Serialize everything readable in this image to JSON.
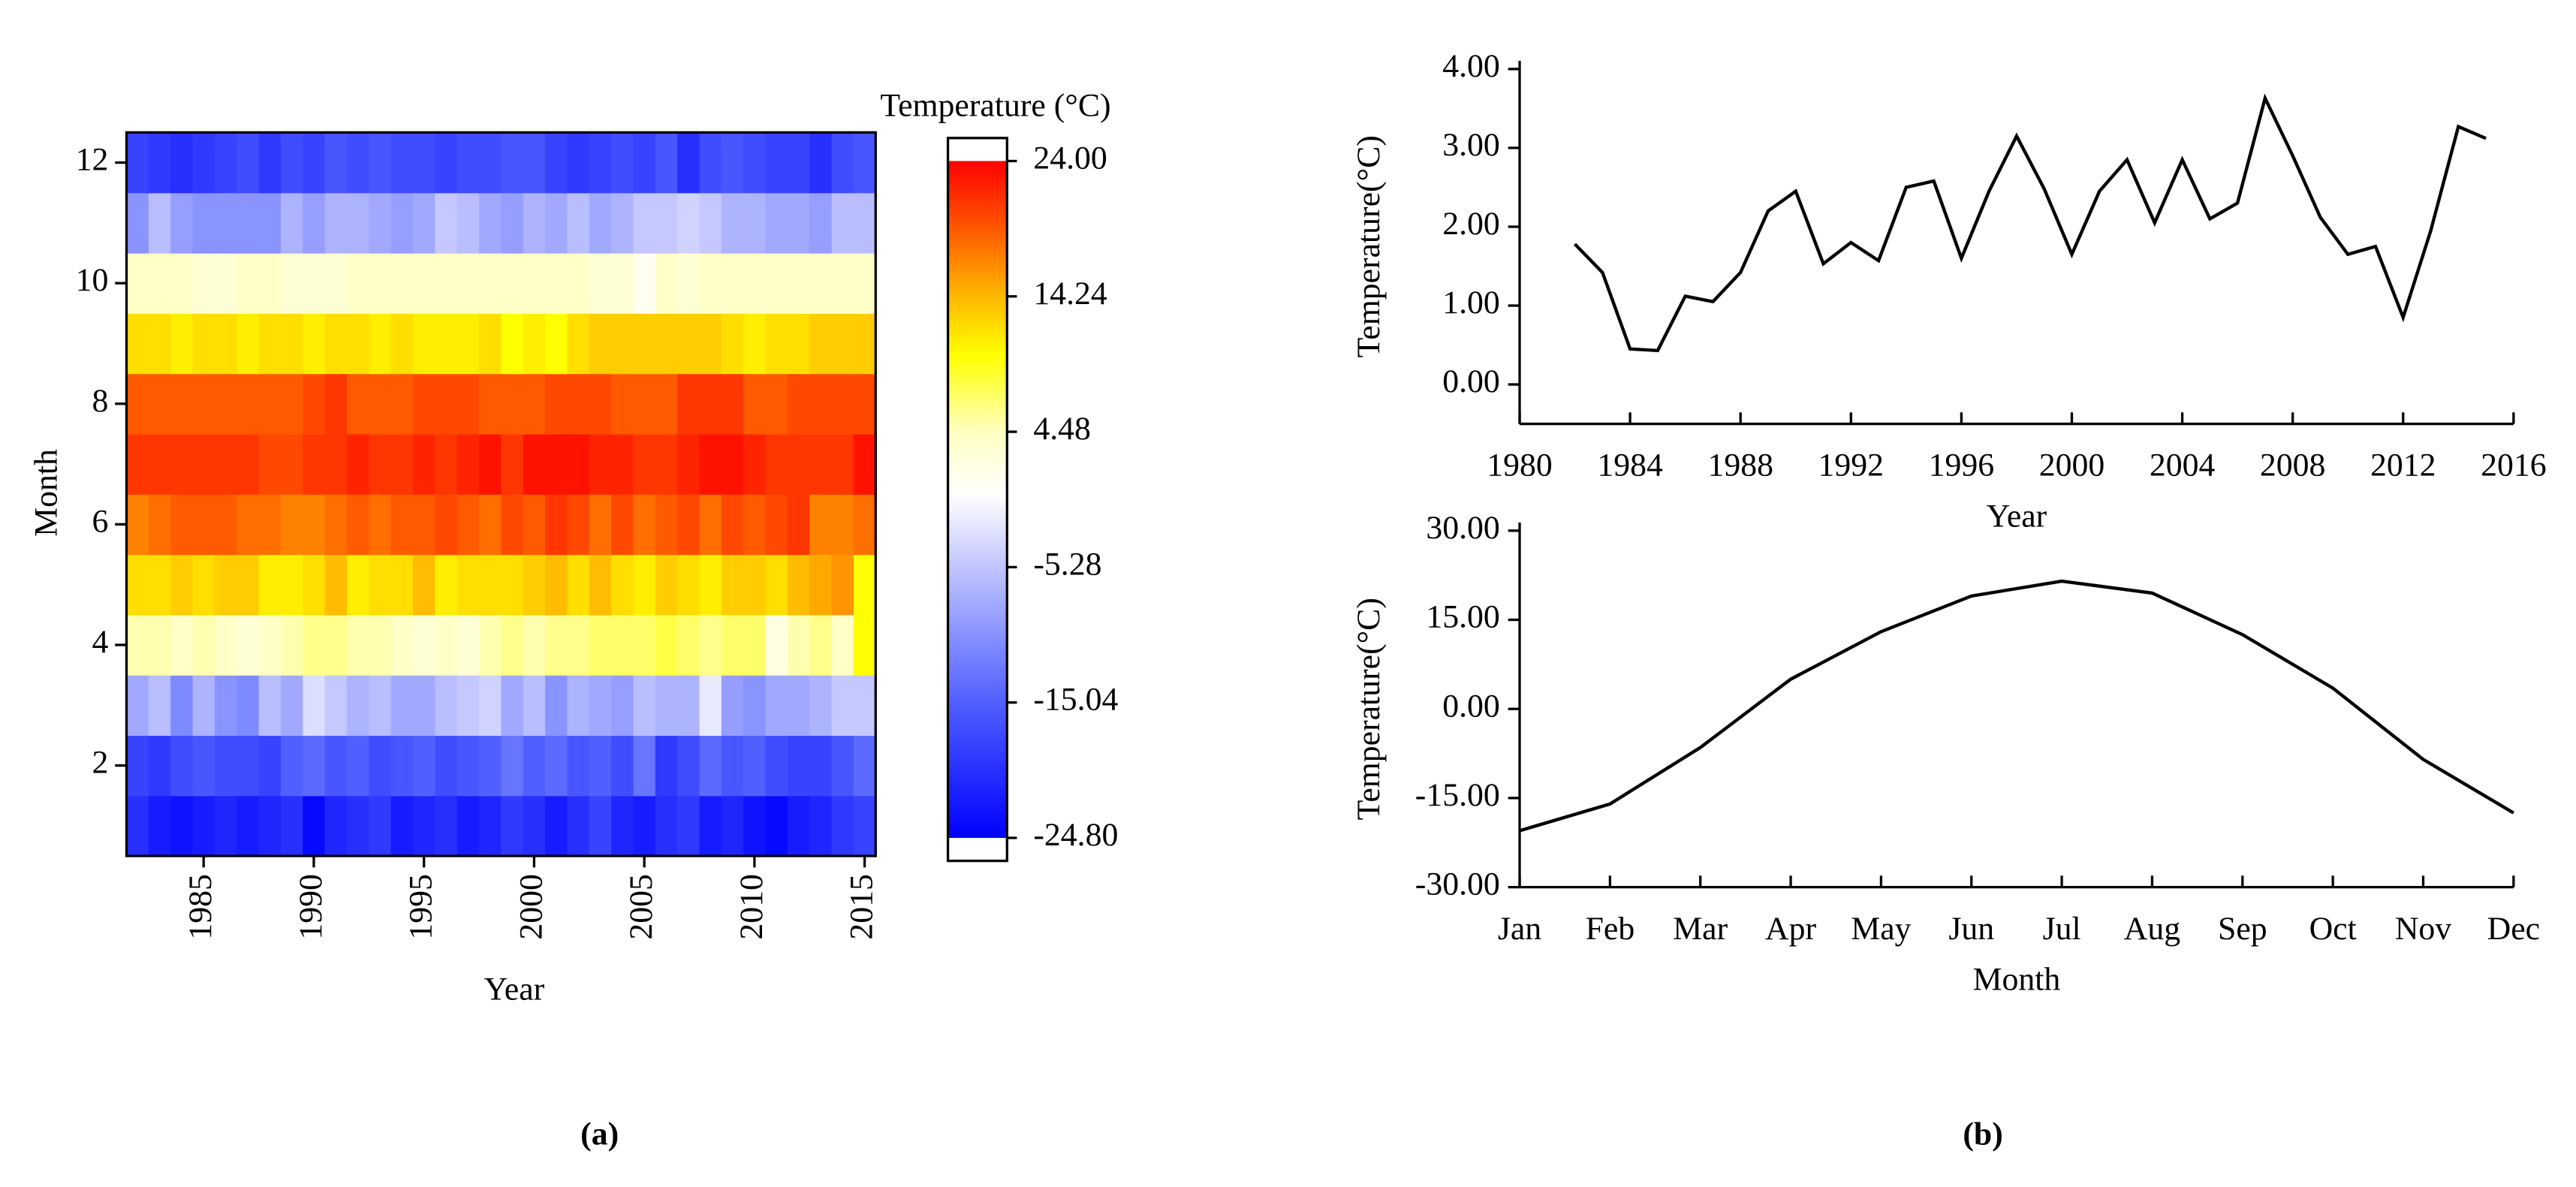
{
  "chart_data": [
    {
      "type": "heatmap",
      "colorbar_label": "Temperature (°C)",
      "x_label": "Year",
      "y_label": "Month",
      "panel": "(a)",
      "x": [
        1982,
        1983,
        1984,
        1985,
        1986,
        1987,
        1988,
        1989,
        1990,
        1991,
        1992,
        1993,
        1994,
        1995,
        1996,
        1997,
        1998,
        1999,
        2000,
        2001,
        2002,
        2003,
        2004,
        2005,
        2006,
        2007,
        2008,
        2009,
        2010,
        2011,
        2012,
        2013,
        2014,
        2015
      ],
      "y": [
        1,
        2,
        3,
        4,
        5,
        6,
        7,
        8,
        9,
        10,
        11,
        12
      ],
      "z": [
        [
          -20,
          -22,
          -23,
          -22,
          -21,
          -22,
          -21,
          -20,
          -24,
          -21,
          -20,
          -19,
          -22,
          -21,
          -20,
          -22,
          -21,
          -19,
          -20,
          -22,
          -20,
          -18,
          -21,
          -22,
          -20,
          -19,
          -22,
          -21,
          -23,
          -24,
          -22,
          -21,
          -19,
          -18
        ],
        [
          -18,
          -19,
          -17,
          -16,
          -17,
          -17,
          -18,
          -15,
          -14,
          -16,
          -15,
          -17,
          -16,
          -15,
          -17,
          -16,
          -15,
          -13,
          -15,
          -14,
          -16,
          -15,
          -17,
          -13,
          -19,
          -17,
          -14,
          -16,
          -15,
          -17,
          -18,
          -18,
          -16,
          -14
        ],
        [
          -8,
          -6,
          -11,
          -7,
          -10,
          -11,
          -6,
          -8,
          -3,
          -5,
          -7,
          -6,
          -8,
          -8,
          -6,
          -5,
          -4,
          -8,
          -6,
          -10,
          -7,
          -8,
          -9,
          -6,
          -7,
          -7,
          -2,
          -9,
          -10,
          -8,
          -8,
          -7,
          -5,
          -5
        ],
        [
          5,
          5,
          4,
          5,
          4,
          3,
          4,
          5,
          6,
          6,
          5,
          5,
          4,
          3,
          4,
          3,
          5,
          6,
          5,
          6,
          6,
          7,
          7,
          7,
          8,
          7,
          6,
          7,
          7,
          2,
          5,
          6,
          4,
          10
        ],
        [
          12,
          12,
          13,
          12,
          13,
          13,
          11,
          11,
          12,
          14,
          11,
          12,
          12,
          14,
          11,
          12,
          12,
          12,
          13,
          14,
          12,
          14,
          12,
          11,
          13,
          12,
          11,
          13,
          13,
          12,
          14,
          15,
          16,
          10
        ],
        [
          17,
          18,
          19,
          19,
          19,
          18,
          18,
          17,
          17,
          18,
          19,
          18,
          19,
          19,
          20,
          19,
          18,
          20,
          19,
          21,
          20,
          18,
          20,
          18,
          19,
          20,
          18,
          20,
          19,
          20,
          21,
          17,
          17,
          18
        ],
        [
          21,
          21,
          21,
          21,
          21,
          21,
          20,
          20,
          21,
          21,
          22,
          21,
          21,
          22,
          21,
          22,
          23,
          21,
          23,
          23,
          23,
          22,
          22,
          21,
          21,
          22,
          23,
          23,
          22,
          21,
          21,
          21,
          21,
          23
        ],
        [
          19,
          19,
          19,
          19,
          19,
          19,
          19,
          19,
          20,
          21,
          19,
          19,
          19,
          20,
          20,
          20,
          19,
          19,
          19,
          20,
          20,
          20,
          19,
          19,
          19,
          21,
          21,
          21,
          19,
          19,
          20,
          20,
          20,
          20
        ],
        [
          12,
          12,
          11,
          12,
          12,
          11,
          12,
          12,
          11,
          12,
          12,
          11,
          12,
          11,
          11,
          11,
          12,
          10,
          11,
          10,
          12,
          13,
          13,
          13,
          13,
          13,
          13,
          12,
          11,
          12,
          12,
          13,
          13,
          13
        ],
        [
          4,
          4,
          4,
          3,
          3,
          4,
          4,
          3,
          3,
          3,
          4,
          4,
          4,
          4,
          4,
          4,
          4,
          4,
          4,
          4,
          4,
          3,
          3,
          1,
          4,
          3,
          4,
          4,
          4,
          4,
          4,
          4,
          4,
          4
        ],
        [
          -10,
          -6,
          -9,
          -10,
          -10,
          -10,
          -10,
          -7,
          -9,
          -7,
          -7,
          -8,
          -9,
          -8,
          -5,
          -6,
          -8,
          -9,
          -7,
          -8,
          -6,
          -8,
          -7,
          -5,
          -5,
          -4,
          -5,
          -7,
          -7,
          -8,
          -8,
          -9,
          -6,
          -6
        ],
        [
          -18,
          -19,
          -20,
          -19,
          -18,
          -17,
          -19,
          -17,
          -18,
          -16,
          -17,
          -16,
          -17,
          -17,
          -18,
          -17,
          -17,
          -16,
          -16,
          -18,
          -19,
          -18,
          -17,
          -18,
          -16,
          -20,
          -17,
          -16,
          -17,
          -18,
          -18,
          -20,
          -17,
          -16
        ]
      ],
      "xlim": [
        1981.5,
        2015.5
      ],
      "xticks": [
        1985,
        1990,
        1995,
        2000,
        2005,
        2010,
        2015
      ],
      "ylim": [
        0.5,
        12.5
      ],
      "yticks": [
        2,
        4,
        6,
        8,
        10,
        12
      ],
      "clim": [
        -24.8,
        24
      ],
      "cticks": [
        {
          "value": 24,
          "label": "24.00"
        },
        {
          "value": 14.24,
          "label": "14.24"
        },
        {
          "value": 4.48,
          "label": "4.48"
        },
        {
          "value": -5.28,
          "label": "-5.28"
        },
        {
          "value": -15.04,
          "label": "-15.04"
        },
        {
          "value": -24.8,
          "label": "-24.80"
        }
      ],
      "colorscale": [
        [
          -24.8,
          "#0000ff"
        ],
        [
          -15,
          "#5060ff"
        ],
        [
          -5,
          "#c4c8ff"
        ],
        [
          0,
          "#ffffff"
        ],
        [
          4.5,
          "#ffffc0"
        ],
        [
          10,
          "#ffff00"
        ],
        [
          14.24,
          "#ffb800"
        ],
        [
          19,
          "#ff5a00"
        ],
        [
          24,
          "#ff0000"
        ]
      ]
    },
    {
      "type": "line",
      "x_label": "Year",
      "y_label": "Temperature(°C)",
      "panel": "(b)",
      "x": [
        1982,
        1983,
        1984,
        1985,
        1986,
        1987,
        1988,
        1989,
        1990,
        1991,
        1992,
        1993,
        1994,
        1995,
        1996,
        1997,
        1998,
        1999,
        2000,
        2001,
        2002,
        2003,
        2004,
        2005,
        2006,
        2007,
        2008,
        2009,
        2010,
        2011,
        2012,
        2013,
        2014,
        2015
      ],
      "series": [
        {
          "color": "#000000",
          "values": [
            1.78,
            1.42,
            0.45,
            0.43,
            1.12,
            1.05,
            1.42,
            2.2,
            2.45,
            1.53,
            1.8,
            1.57,
            2.5,
            2.58,
            1.6,
            2.45,
            3.15,
            2.48,
            1.65,
            2.45,
            2.85,
            2.05,
            2.85,
            2.1,
            2.3,
            3.63,
            2.9,
            2.12,
            1.65,
            1.75,
            0.85,
            1.95,
            3.27,
            3.12
          ]
        }
      ],
      "xlim": [
        1980,
        2016
      ],
      "xticks": [
        1980,
        1984,
        1988,
        1992,
        1996,
        2000,
        2004,
        2008,
        2012,
        2016
      ],
      "ylim": [
        -0.5,
        4
      ],
      "yticks": [
        {
          "value": 0,
          "label": "0.00"
        },
        {
          "value": 1,
          "label": "1.00"
        },
        {
          "value": 2,
          "label": "2.00"
        },
        {
          "value": 3,
          "label": "3.00"
        },
        {
          "value": 4,
          "label": "4.00"
        }
      ]
    },
    {
      "type": "line",
      "x_label": "Month",
      "y_label": "Temperature(°C)",
      "categories": [
        "Jan",
        "Feb",
        "Mar",
        "Apr",
        "May",
        "Jun",
        "Jul",
        "Aug",
        "Sep",
        "Oct",
        "Nov",
        "Dec"
      ],
      "series": [
        {
          "color": "#000000",
          "values": [
            -20.5,
            -16,
            -6.5,
            5,
            13,
            19,
            21.5,
            19.5,
            12.5,
            3.5,
            -8.5,
            -17.5
          ]
        }
      ],
      "ylim": [
        -30,
        30
      ],
      "yticks": [
        {
          "value": -30,
          "label": "-30.00"
        },
        {
          "value": -15,
          "label": "-15.00"
        },
        {
          "value": 0,
          "label": "0.00"
        },
        {
          "value": 15,
          "label": "15.00"
        },
        {
          "value": 30,
          "label": "30.00"
        }
      ]
    }
  ]
}
